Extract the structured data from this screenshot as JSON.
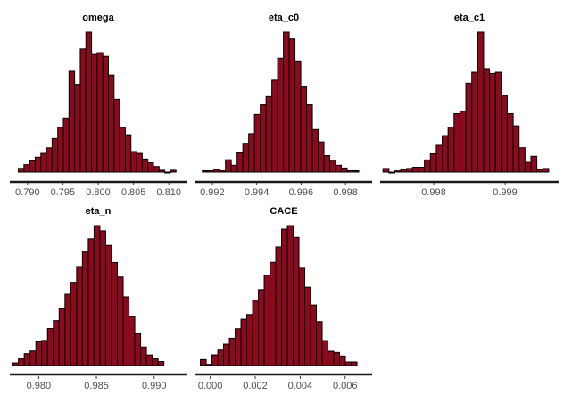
{
  "chart_data": [
    {
      "type": "bar",
      "title": "omega",
      "xlim": [
        0.7875,
        0.8125
      ],
      "ticks": [
        0.79,
        0.795,
        0.8,
        0.805,
        0.81
      ],
      "tick_labels": [
        "0.790",
        "0.795",
        "0.800",
        "0.805",
        "0.810"
      ],
      "bin_start": 0.7887,
      "bin_width": 0.000797,
      "counts": [
        2,
        4,
        6,
        8,
        10,
        13,
        18,
        24,
        29,
        54,
        47,
        66,
        75,
        63,
        64,
        62,
        52,
        39,
        24,
        20,
        11,
        10,
        7,
        5,
        3,
        1,
        0,
        1
      ]
    },
    {
      "type": "bar",
      "title": "eta_c0",
      "xlim": [
        0.9912,
        0.9992
      ],
      "ticks": [
        0.992,
        0.994,
        0.996,
        0.998
      ],
      "tick_labels": [
        "0.992",
        "0.994",
        "0.996",
        "0.998"
      ],
      "bin_start": 0.99155,
      "bin_width": 0.000261,
      "counts": [
        1,
        1,
        2,
        1,
        9,
        5,
        14,
        21,
        28,
        42,
        49,
        55,
        67,
        83,
        102,
        97,
        81,
        62,
        49,
        31,
        22,
        12,
        8,
        5,
        3,
        1,
        1
      ]
    },
    {
      "type": "bar",
      "title": "eta_c1",
      "xlim": [
        0.99725,
        0.99975
      ],
      "ticks": [
        0.998,
        0.999
      ],
      "tick_labels": [
        "0.998",
        "0.999"
      ],
      "bin_start": 0.99729,
      "bin_width": 8.29e-05,
      "counts": [
        3,
        0,
        1,
        2,
        3,
        4,
        4,
        10,
        15,
        22,
        30,
        37,
        48,
        50,
        73,
        82,
        115,
        85,
        81,
        82,
        63,
        48,
        38,
        20,
        8,
        13,
        2,
        3
      ]
    },
    {
      "type": "bar",
      "title": "eta_n",
      "xlim": [
        0.9775,
        0.9928
      ],
      "ticks": [
        0.98,
        0.985,
        0.99
      ],
      "tick_labels": [
        "0.980",
        "0.985",
        "0.990"
      ],
      "bin_start": 0.97774,
      "bin_width": 0.000504,
      "counts": [
        2,
        5,
        9,
        11,
        18,
        19,
        28,
        34,
        43,
        54,
        63,
        75,
        86,
        96,
        106,
        102,
        91,
        78,
        67,
        52,
        37,
        24,
        14,
        8,
        5,
        3
      ]
    },
    {
      "type": "bar",
      "title": "CACE",
      "xlim": [
        -0.0007,
        0.0072
      ],
      "ticks": [
        0.0,
        0.002,
        0.004,
        0.006
      ],
      "tick_labels": [
        "0.000",
        "0.002",
        "0.004",
        "0.006"
      ],
      "bin_start": -0.00044,
      "bin_width": 0.000258,
      "counts": [
        5,
        1,
        9,
        13,
        18,
        23,
        31,
        39,
        43,
        55,
        64,
        76,
        87,
        100,
        115,
        118,
        108,
        82,
        66,
        51,
        37,
        21,
        12,
        11,
        8,
        3,
        3
      ]
    }
  ]
}
